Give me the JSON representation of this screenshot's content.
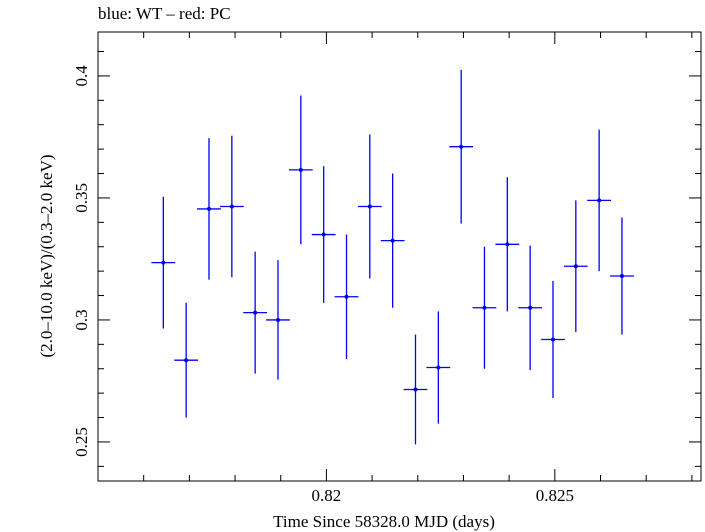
{
  "chart_data": {
    "type": "scatter",
    "title": "blue: WT – red: PC",
    "xlabel": "Time Since 58328.0 MJD (days)",
    "ylabel": "(2.0–10.0 keV)/(0.3–2.0 keV)",
    "xlim": [
      0.815,
      0.8282
    ],
    "ylim": [
      0.234,
      0.418
    ],
    "xticks": [
      0.82,
      0.825
    ],
    "xtick_labels": [
      "0.82",
      "0.825"
    ],
    "yticks": [
      0.25,
      0.3,
      0.35,
      0.4
    ],
    "ytick_labels": [
      "0.25",
      "0.3",
      "0.35",
      "0.4"
    ],
    "grid": false,
    "series": [
      {
        "name": "WT",
        "color": "#0000ff",
        "points": [
          {
            "x": 0.81643,
            "xerr": 0.00026,
            "y": 0.3235,
            "yerr": 0.027
          },
          {
            "x": 0.81693,
            "xerr": 0.00026,
            "y": 0.2835,
            "yerr": 0.0235
          },
          {
            "x": 0.81743,
            "xerr": 0.00026,
            "y": 0.3455,
            "yerr": 0.029
          },
          {
            "x": 0.81793,
            "xerr": 0.00026,
            "y": 0.3465,
            "yerr": 0.029
          },
          {
            "x": 0.81844,
            "xerr": 0.00026,
            "y": 0.303,
            "yerr": 0.025
          },
          {
            "x": 0.81894,
            "xerr": 0.00026,
            "y": 0.3,
            "yerr": 0.0245
          },
          {
            "x": 0.81944,
            "xerr": 0.00026,
            "y": 0.3615,
            "yerr": 0.0305
          },
          {
            "x": 0.81994,
            "xerr": 0.00026,
            "y": 0.335,
            "yerr": 0.028
          },
          {
            "x": 0.82044,
            "xerr": 0.00026,
            "y": 0.3095,
            "yerr": 0.0255
          },
          {
            "x": 0.82095,
            "xerr": 0.00026,
            "y": 0.3465,
            "yerr": 0.0295
          },
          {
            "x": 0.82145,
            "xerr": 0.00026,
            "y": 0.3325,
            "yerr": 0.0275
          },
          {
            "x": 0.82195,
            "xerr": 0.00026,
            "y": 0.2715,
            "yerr": 0.0225
          },
          {
            "x": 0.82245,
            "xerr": 0.00026,
            "y": 0.2805,
            "yerr": 0.023
          },
          {
            "x": 0.82295,
            "xerr": 0.00026,
            "y": 0.371,
            "yerr": 0.0315
          },
          {
            "x": 0.82346,
            "xerr": 0.00026,
            "y": 0.305,
            "yerr": 0.025
          },
          {
            "x": 0.82396,
            "xerr": 0.00026,
            "y": 0.331,
            "yerr": 0.0275
          },
          {
            "x": 0.82446,
            "xerr": 0.00026,
            "y": 0.305,
            "yerr": 0.0255
          },
          {
            "x": 0.82496,
            "xerr": 0.00026,
            "y": 0.292,
            "yerr": 0.024
          },
          {
            "x": 0.82546,
            "xerr": 0.00026,
            "y": 0.322,
            "yerr": 0.027
          },
          {
            "x": 0.82597,
            "xerr": 0.00026,
            "y": 0.349,
            "yerr": 0.029
          },
          {
            "x": 0.82647,
            "xerr": 0.00026,
            "y": 0.318,
            "yerr": 0.024
          }
        ]
      }
    ]
  }
}
